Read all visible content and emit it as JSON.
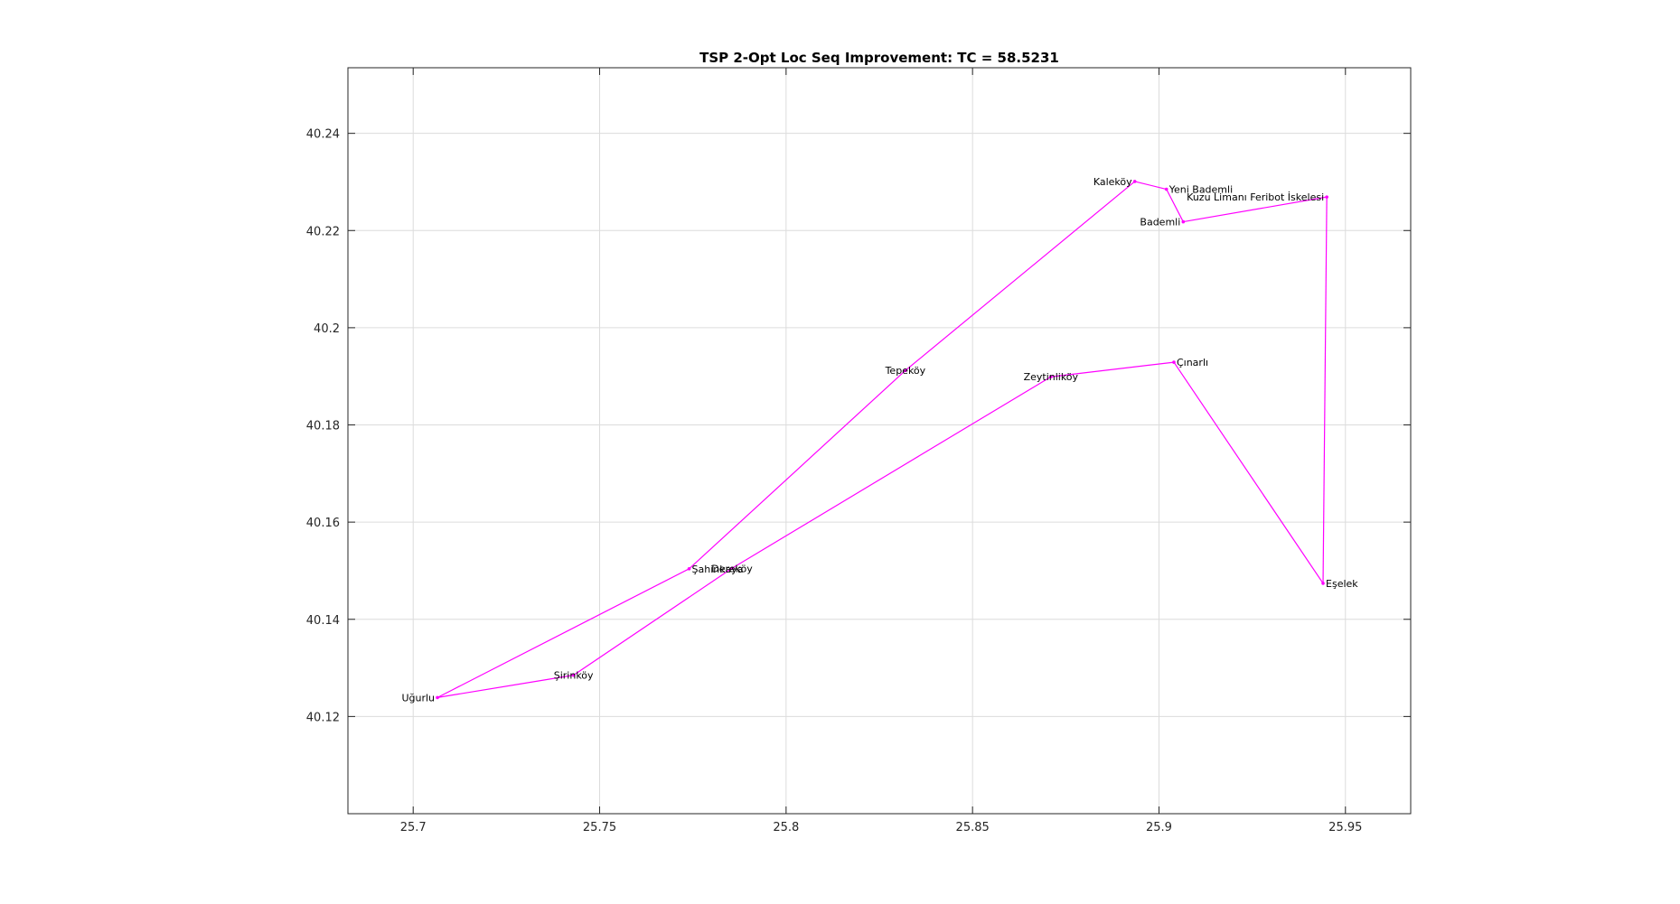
{
  "chart_data": {
    "type": "line",
    "title": "TSP 2-Opt Loc Seq Improvement: TC = 58.5231",
    "xlabel": "",
    "ylabel": "",
    "xlim": [
      25.6825,
      25.9675
    ],
    "ylim": [
      40.1,
      40.2535
    ],
    "grid": true,
    "line_color": "#ff00ff",
    "x_ticks": [
      {
        "value": 25.7,
        "label": "25.7"
      },
      {
        "value": 25.75,
        "label": "25.75"
      },
      {
        "value": 25.8,
        "label": "25.8"
      },
      {
        "value": 25.85,
        "label": "25.85"
      },
      {
        "value": 25.9,
        "label": "25.9"
      },
      {
        "value": 25.95,
        "label": "25.95"
      }
    ],
    "y_ticks": [
      {
        "value": 40.12,
        "label": "40.12"
      },
      {
        "value": 40.14,
        "label": "40.14"
      },
      {
        "value": 40.16,
        "label": "40.16"
      },
      {
        "value": 40.18,
        "label": "40.18"
      },
      {
        "value": 40.2,
        "label": "40.2"
      },
      {
        "value": 40.22,
        "label": "40.22"
      },
      {
        "value": 40.24,
        "label": "40.24"
      }
    ],
    "tour": [
      {
        "name": "Uğurlu",
        "x": 25.7065,
        "y": 40.1239,
        "label_anchor": "end"
      },
      {
        "name": "Şahinkaya",
        "x": 25.774,
        "y": 40.1504,
        "label_anchor": "start"
      },
      {
        "name": "Tepeköy",
        "x": 25.832,
        "y": 40.1912,
        "label_anchor": "middle"
      },
      {
        "name": "Kaleköy",
        "x": 25.8935,
        "y": 40.2301,
        "label_anchor": "end"
      },
      {
        "name": "Yeni Bademli",
        "x": 25.902,
        "y": 40.2285,
        "label_anchor": "start"
      },
      {
        "name": "Bademli",
        "x": 25.9065,
        "y": 40.2218,
        "label_anchor": "end"
      },
      {
        "name": "Kuzu Limanı Feribot İskelesi",
        "x": 25.945,
        "y": 40.2269,
        "label_anchor": "end"
      },
      {
        "name": "Eşelek",
        "x": 25.944,
        "y": 40.1474,
        "label_anchor": "start"
      },
      {
        "name": "Çınarlı",
        "x": 25.904,
        "y": 40.1929,
        "label_anchor": "start"
      },
      {
        "name": "Zeytinliköy",
        "x": 25.871,
        "y": 40.1899,
        "label_anchor": "middle"
      },
      {
        "name": "Dereköy",
        "x": 25.7855,
        "y": 40.1505,
        "label_anchor": "middle"
      },
      {
        "name": "Şirinköy",
        "x": 25.743,
        "y": 40.1285,
        "label_anchor": "middle"
      }
    ]
  }
}
